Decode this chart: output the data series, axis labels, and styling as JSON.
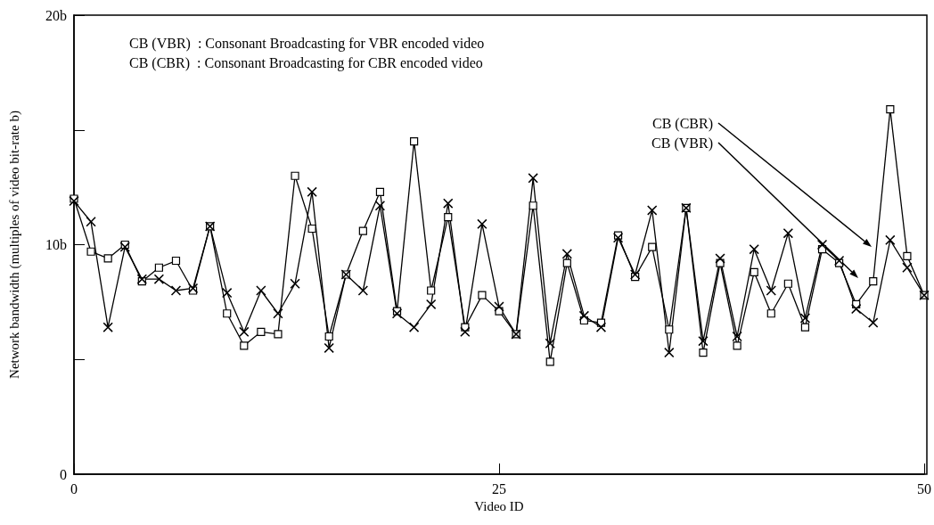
{
  "chart_data": {
    "type": "line",
    "xlabel": "Video ID",
    "ylabel": "Network bandwidth (multiples of video bit-rate b)",
    "x": [
      0,
      1,
      2,
      3,
      4,
      5,
      6,
      7,
      8,
      9,
      10,
      11,
      12,
      13,
      14,
      15,
      16,
      17,
      18,
      19,
      20,
      21,
      22,
      23,
      24,
      25,
      26,
      27,
      28,
      29,
      30,
      31,
      32,
      33,
      34,
      35,
      36,
      37,
      38,
      39,
      40,
      41,
      42,
      43,
      44,
      45,
      46,
      47,
      48,
      49,
      50
    ],
    "series": [
      {
        "color": "#000000",
        "marker": "square",
        "values": [
          12.0,
          9.7,
          9.4,
          10.0,
          8.4,
          9.0,
          9.3,
          8.0,
          10.8,
          7.0,
          5.6,
          6.2,
          6.1,
          13.0,
          10.7,
          6.0,
          8.7,
          10.6,
          12.3,
          7.1,
          14.5,
          8.0,
          11.2,
          6.4,
          7.8,
          7.1,
          6.1,
          11.7,
          4.9,
          9.2,
          6.7,
          6.6,
          10.4,
          8.6,
          9.9,
          6.3,
          11.6,
          5.3,
          9.2,
          5.6,
          8.8,
          7.0,
          8.3,
          6.4,
          9.8,
          9.2,
          7.4,
          8.4,
          15.9,
          9.5,
          7.8
        ]
      },
      {
        "color": "#000000",
        "marker": "cross",
        "values": [
          11.9,
          11.0,
          6.4,
          9.9,
          8.5,
          8.5,
          8.0,
          8.1,
          10.8,
          7.9,
          6.2,
          8.0,
          7.0,
          8.3,
          12.3,
          5.5,
          8.7,
          8.0,
          11.7,
          7.0,
          6.4,
          7.4,
          11.8,
          6.2,
          10.9,
          7.3,
          6.1,
          12.9,
          5.7,
          9.6,
          6.9,
          6.4,
          10.3,
          8.7,
          11.5,
          5.3,
          11.6,
          5.8,
          9.4,
          6.0,
          9.8,
          8.0,
          10.5,
          6.8,
          10.0,
          9.3,
          7.2,
          6.6,
          10.2,
          9.0,
          7.8
        ]
      }
    ],
    "xlim": [
      0,
      50
    ],
    "xticks": [
      0,
      25,
      50
    ],
    "ylim": [
      0,
      20
    ],
    "yticks": [
      {
        "value": 0,
        "label": "0"
      },
      {
        "value": 5,
        "label": null
      },
      {
        "value": 10,
        "label": "10b"
      },
      {
        "value": 15,
        "label": null
      },
      {
        "value": 20,
        "label": "20b"
      }
    ],
    "grid": false,
    "line_style": "solid",
    "annotations": [
      "CB (VBR)  : Consonant Broadcasting for VBR encoded video",
      "CB (CBR)  : Consonant Broadcasting for CBR encoded video",
      "CB (CBR)",
      "CB (VBR)"
    ]
  }
}
